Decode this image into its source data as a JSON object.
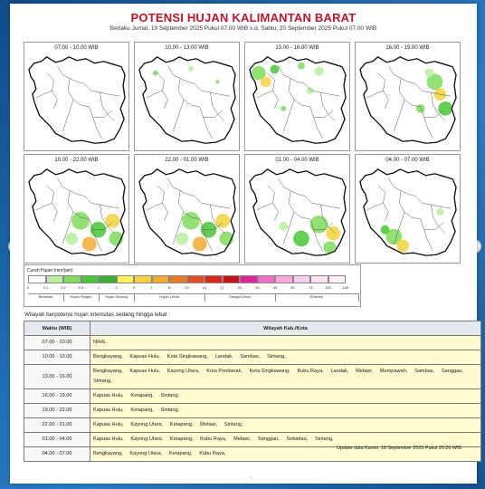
{
  "header": {
    "title": "POTENSI HUJAN KALIMANTAN BARAT",
    "subtitle": "Berlaku Jumat, 19 September 2025 Pukul 07.00 WIB s.d. Sabtu, 20 September 2025 Pukul 07.00 WIB"
  },
  "panels": [
    {
      "time": "07.00 - 10.00  WIB",
      "intensity": "none"
    },
    {
      "time": "10.00 - 13.00  WIB",
      "intensity": "scattered"
    },
    {
      "time": "13.00 - 16.00  WIB",
      "intensity": "north"
    },
    {
      "time": "16.00 - 19.00  WIB",
      "intensity": "east"
    },
    {
      "time": "19.00 - 22.00  WIB",
      "intensity": "south"
    },
    {
      "time": "22.00 - 01.00  WIB",
      "intensity": "south"
    },
    {
      "time": "01.00 - 04.00  WIB",
      "intensity": "southeast"
    },
    {
      "time": "04.00 - 07.00  WIB",
      "intensity": "southwest"
    }
  ],
  "legend": {
    "title": "Curah Hujan (mm/jam)",
    "colors": [
      "#ffffff",
      "#b8f0a0",
      "#7fdc5a",
      "#45c835",
      "#36b02a",
      "#fff35a",
      "#f7d23a",
      "#f3a92c",
      "#ee7a22",
      "#e84a1c",
      "#e02218",
      "#c41414",
      "#e0239a",
      "#f36ec9",
      "#f8a6dd",
      "#fbcdea",
      "#fde3f2",
      "#fff1f9"
    ],
    "ticks": [
      "0",
      "0.1",
      "0.2",
      "0.3",
      "1",
      "2",
      "3",
      "7",
      "8",
      "10",
      "14",
      "17",
      "20",
      "30",
      "40",
      "50",
      "73",
      "100",
      "150"
    ],
    "categories": [
      "Berawan",
      "Hujan Ringan",
      "Hujan Sedang",
      "Hujan Lebat",
      "Sangat Lebat",
      "Ekstrem"
    ]
  },
  "intro_text": "Wilayah berpotensi hujan intensitas sedang hingga lebat :",
  "table": {
    "headers": [
      "Waktu (WIB)",
      "Wilayah Kab./Kota"
    ],
    "rows": [
      {
        "time": "07.00 - 10.00",
        "areas": "NIHIL"
      },
      {
        "time": "10.00 - 13.00",
        "areas": "Bengkayang,     Kapuas Hulu,     Kota Singkawang,     Landak,     Sambas,     Sintang,"
      },
      {
        "time": "13.00 - 16.00",
        "areas": "Bengkayang,     Kapuas Hulu,     Kayong Utara,     Kota Pontianak,     Kota Singkawang,     Kubu Raya,     Landak,     Melawi,     Mempawah,     Sambas,     Sanggau,     Sintang,"
      },
      {
        "time": "16.00 - 19.00",
        "areas": "Kapuas Hulu,     Ketapang,     Sintang,"
      },
      {
        "time": "19.00 - 22.00",
        "areas": "Kapuas Hulu,     Ketapang,     Sintang,"
      },
      {
        "time": "22.00 - 01.00",
        "areas": "Kapuas Hulu,     Kayong Utara,     Ketapang,     Melawi,     Sintang,"
      },
      {
        "time": "01.00 - 04.00",
        "areas": "Kapuas Hulu,     Kayong Utara,     Ketapang,     Kubu Raya,     Melawi,     Sanggau,     Sekadau,     Sintang,"
      },
      {
        "time": "04.00 - 07.00",
        "areas": "Bengkayang,     Kayong Utara,     Ketapang,     Kubu Raya,"
      }
    ]
  },
  "footer": "Update data Kamis, 18 September 2025 Pukul 20.20 WIB",
  "nav": {
    "prev_icon": "‹",
    "next_icon": "›"
  }
}
